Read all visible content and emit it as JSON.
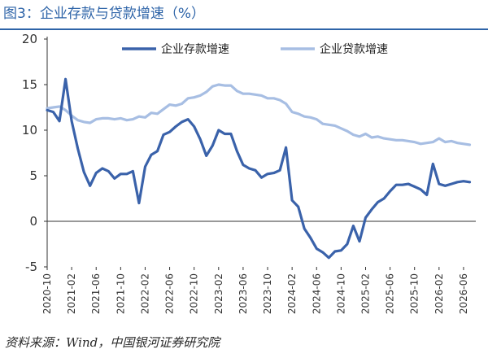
{
  "figure": {
    "title": "图3：企业存款与贷款增速（%）",
    "source": "资料来源：Wind，中国银河证券研究院"
  },
  "colors": {
    "title": "#2e64a8",
    "deposit": "#3a62aa",
    "loan": "#a7bee3",
    "axis": "#333333"
  },
  "chart_data": {
    "type": "line",
    "ylim": [
      -5,
      20
    ],
    "yticks": [
      -5,
      0,
      5,
      10,
      15,
      20
    ],
    "yticklabels": [
      "-5",
      "0",
      "5",
      "10",
      "15",
      "20"
    ],
    "xrange": [
      "2020-10",
      "2026-08"
    ],
    "xticklabels": [
      "2020-10",
      "2021-02",
      "2021-06",
      "2021-10",
      "2022-02",
      "2022-06",
      "2022-10",
      "2023-02",
      "2023-06",
      "2023-10",
      "2024-02",
      "2024-06",
      "2024-10",
      "2025-02",
      "2025-06",
      "2025-10",
      "2026-02",
      "2026-06"
    ],
    "legend_position": "top",
    "series": [
      {
        "name": "企业存款增速",
        "x": [
          "2020-10",
          "2020-11",
          "2020-12",
          "2021-01",
          "2021-02",
          "2021-03",
          "2021-04",
          "2021-05",
          "2021-06",
          "2021-07",
          "2021-08",
          "2021-09",
          "2021-10",
          "2021-11",
          "2021-12",
          "2022-01",
          "2022-02",
          "2022-03",
          "2022-04",
          "2022-05",
          "2022-06",
          "2022-07",
          "2022-08",
          "2022-09",
          "2022-10",
          "2022-11",
          "2022-12",
          "2023-01",
          "2023-02",
          "2023-03",
          "2023-04",
          "2023-05",
          "2023-06",
          "2023-07",
          "2023-08",
          "2023-09",
          "2023-10",
          "2023-11",
          "2023-12",
          "2024-01",
          "2024-02",
          "2024-03",
          "2024-04",
          "2024-05",
          "2024-06",
          "2024-07",
          "2024-08",
          "2024-09",
          "2024-10",
          "2024-11",
          "2024-12",
          "2025-01",
          "2025-02",
          "2025-03",
          "2025-04",
          "2025-05",
          "2025-06",
          "2025-07",
          "2025-08",
          "2025-09",
          "2025-10",
          "2025-11",
          "2025-12",
          "2026-01",
          "2026-02",
          "2026-03",
          "2026-04",
          "2026-05",
          "2026-06",
          "2026-07"
        ],
        "values": [
          12.2,
          12.0,
          11.0,
          15.6,
          11.0,
          8.0,
          5.4,
          3.9,
          5.3,
          5.8,
          5.5,
          4.7,
          5.2,
          5.2,
          5.5,
          2.0,
          6.0,
          7.3,
          7.7,
          9.5,
          9.8,
          10.4,
          10.9,
          11.2,
          10.4,
          9.0,
          7.2,
          8.3,
          10.0,
          9.6,
          9.6,
          7.7,
          6.2,
          5.8,
          5.6,
          4.8,
          5.2,
          5.3,
          5.6,
          8.1,
          2.3,
          1.6,
          -0.8,
          -1.8,
          -3.0,
          -3.4,
          -4.0,
          -3.3,
          -3.2,
          -2.5,
          -0.5,
          -2.2,
          0.4,
          1.3,
          2.1,
          2.5,
          3.3,
          4.0,
          4.0,
          4.1,
          3.8,
          3.5,
          2.9,
          6.3,
          4.1,
          3.9,
          4.1,
          4.3,
          4.4,
          4.3
        ]
      },
      {
        "name": "企业贷款增速",
        "x": [
          "2020-10",
          "2020-11",
          "2020-12",
          "2021-01",
          "2021-02",
          "2021-03",
          "2021-04",
          "2021-05",
          "2021-06",
          "2021-07",
          "2021-08",
          "2021-09",
          "2021-10",
          "2021-11",
          "2021-12",
          "2022-01",
          "2022-02",
          "2022-03",
          "2022-04",
          "2022-05",
          "2022-06",
          "2022-07",
          "2022-08",
          "2022-09",
          "2022-10",
          "2022-11",
          "2022-12",
          "2023-01",
          "2023-02",
          "2023-03",
          "2023-04",
          "2023-05",
          "2023-06",
          "2023-07",
          "2023-08",
          "2023-09",
          "2023-10",
          "2023-11",
          "2023-12",
          "2024-01",
          "2024-02",
          "2024-03",
          "2024-04",
          "2024-05",
          "2024-06",
          "2024-07",
          "2024-08",
          "2024-09",
          "2024-10",
          "2024-11",
          "2024-12",
          "2025-01",
          "2025-02",
          "2025-03",
          "2025-04",
          "2025-05",
          "2025-06",
          "2025-07",
          "2025-08",
          "2025-09",
          "2025-10",
          "2025-11",
          "2025-12",
          "2026-01",
          "2026-02",
          "2026-03",
          "2026-04",
          "2026-05",
          "2026-06",
          "2026-07"
        ],
        "values": [
          12.4,
          12.5,
          12.6,
          12.2,
          11.6,
          11.1,
          10.9,
          10.8,
          11.2,
          11.3,
          11.3,
          11.2,
          11.3,
          11.1,
          11.2,
          11.5,
          11.4,
          11.9,
          11.8,
          12.3,
          12.8,
          12.7,
          12.9,
          13.5,
          13.6,
          13.8,
          14.2,
          14.8,
          15.0,
          14.9,
          14.9,
          14.3,
          14.0,
          14.0,
          13.9,
          13.8,
          13.5,
          13.5,
          13.3,
          12.9,
          12.0,
          11.8,
          11.5,
          11.4,
          11.2,
          10.7,
          10.6,
          10.5,
          10.2,
          9.9,
          9.5,
          9.3,
          9.6,
          9.2,
          9.3,
          9.1,
          9.0,
          8.9,
          8.9,
          8.8,
          8.7,
          8.5,
          8.6,
          8.7,
          9.1,
          8.7,
          8.8,
          8.6,
          8.5,
          8.4
        ]
      }
    ]
  }
}
